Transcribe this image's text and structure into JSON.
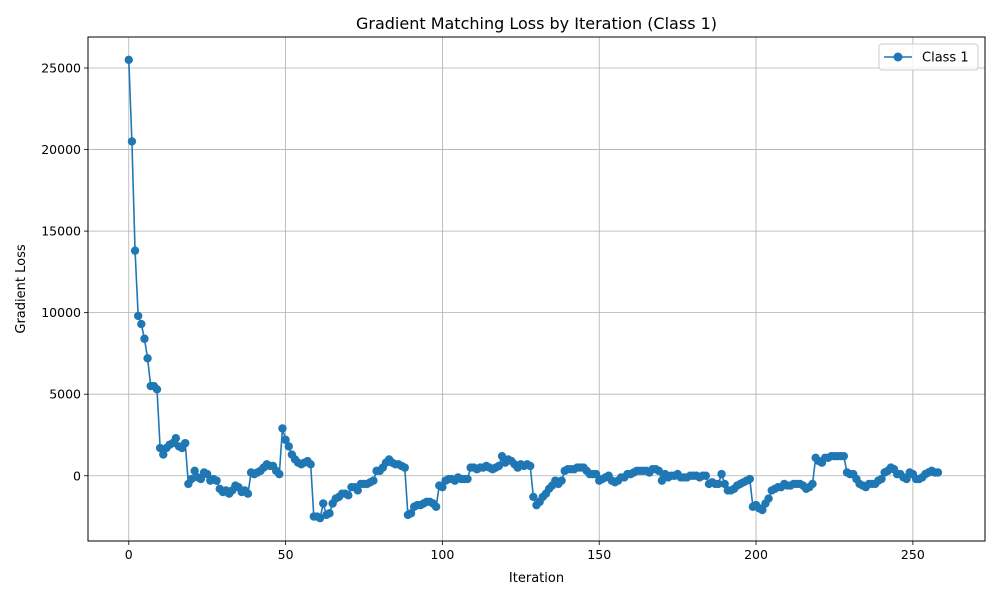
{
  "chart_data": {
    "type": "line",
    "title": "Gradient Matching Loss by Iteration (Class 1)",
    "xlabel": "Iteration",
    "ylabel": "Gradient Loss",
    "xlim": [
      -13,
      273
    ],
    "ylim": [
      -4000,
      26900
    ],
    "xticks": [
      0,
      50,
      100,
      150,
      200,
      250
    ],
    "yticks": [
      0,
      5000,
      10000,
      15000,
      20000,
      25000
    ],
    "grid": true,
    "legend_position": "top-right",
    "series": [
      {
        "name": "Class 1",
        "color": "#1f77b4",
        "marker": "circle",
        "x_start": 0,
        "x_step": 1,
        "values": [
          25500,
          20500,
          13800,
          9800,
          9300,
          8400,
          7200,
          5500,
          5500,
          5300,
          1700,
          1300,
          1700,
          1900,
          2000,
          2300,
          1800,
          1700,
          2000,
          -500,
          -200,
          300,
          -100,
          -200,
          200,
          100,
          -300,
          -200,
          -300,
          -800,
          -1000,
          -900,
          -1100,
          -900,
          -600,
          -700,
          -1000,
          -900,
          -1100,
          200,
          100,
          200,
          300,
          500,
          700,
          600,
          600,
          300,
          100,
          2900,
          2200,
          1800,
          1300,
          1000,
          800,
          700,
          800,
          900,
          700,
          -2500,
          -2500,
          -2600,
          -1700,
          -2400,
          -2300,
          -1700,
          -1400,
          -1300,
          -1100,
          -1100,
          -1200,
          -700,
          -700,
          -900,
          -500,
          -500,
          -500,
          -400,
          -300,
          300,
          300,
          500,
          800,
          1000,
          800,
          700,
          700,
          600,
          500,
          -2400,
          -2300,
          -1900,
          -1800,
          -1800,
          -1700,
          -1600,
          -1600,
          -1700,
          -1900,
          -600,
          -700,
          -300,
          -200,
          -200,
          -300,
          -100,
          -200,
          -200,
          -200,
          500,
          500,
          400,
          500,
          500,
          600,
          500,
          400,
          500,
          600,
          1200,
          800,
          1000,
          900,
          700,
          500,
          700,
          600,
          700,
          600,
          -1300,
          -1800,
          -1600,
          -1300,
          -1100,
          -800,
          -600,
          -300,
          -500,
          -300,
          300,
          400,
          400,
          400,
          500,
          500,
          500,
          300,
          100,
          100,
          100,
          -300,
          -200,
          -100,
          0,
          -300,
          -400,
          -300,
          -100,
          -100,
          100,
          100,
          200,
          300,
          300,
          300,
          300,
          200,
          400,
          400,
          300,
          -300,
          100,
          -100,
          0,
          0,
          100,
          -100,
          -100,
          -100,
          0,
          0,
          0,
          -100,
          0,
          0,
          -500,
          -400,
          -500,
          -500,
          100,
          -500,
          -900,
          -900,
          -800,
          -600,
          -500,
          -400,
          -300,
          -200,
          -1900,
          -1800,
          -2000,
          -2100,
          -1700,
          -1400,
          -900,
          -800,
          -700,
          -700,
          -500,
          -600,
          -600,
          -500,
          -500,
          -500,
          -600,
          -800,
          -700,
          -500,
          1100,
          900,
          800,
          1100,
          1100,
          1200,
          1200,
          1200,
          1200,
          1200,
          200,
          100,
          100,
          -200,
          -500,
          -600,
          -700,
          -500,
          -500,
          -500,
          -300,
          -200,
          200,
          300,
          500,
          400,
          100,
          100,
          -100,
          -200,
          200,
          100,
          -200,
          -200,
          -100,
          100,
          200,
          300,
          200,
          200
        ]
      }
    ]
  },
  "colors": {
    "line": "#1f77b4",
    "grid": "#b0b0b0",
    "axes": "#000000",
    "background": "#ffffff"
  }
}
